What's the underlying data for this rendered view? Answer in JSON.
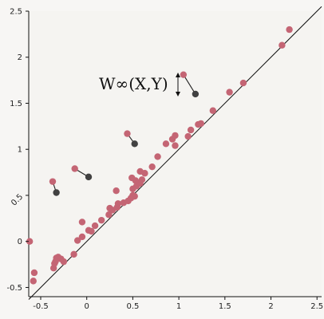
{
  "chart_data": {
    "type": "scatter",
    "title": "",
    "xlabel": "",
    "ylabel": "",
    "xlim": [
      -0.63,
      2.55
    ],
    "ylim": [
      -0.6,
      2.5
    ],
    "grid": false,
    "xticks": [
      -0.5,
      0,
      0.5,
      1,
      1.5,
      2,
      2.5
    ],
    "xtick_labels": [
      "-0.5",
      "0",
      "0.5",
      "1",
      "1.5",
      "2",
      "2.5"
    ],
    "yticks": [
      -0.5,
      0,
      0.5,
      1,
      1.5,
      2,
      2.5
    ],
    "ytick_labels": [
      "-0.5",
      "0",
      "0.5",
      "1",
      "1.5",
      "2",
      "2.5"
    ],
    "diagonal": {
      "from": [
        -0.63,
        -0.63
      ],
      "to": [
        2.55,
        2.55
      ]
    },
    "annotation": {
      "text": "W∞(X,Y)"
    },
    "colors": {
      "diagram_a": "#c46574",
      "diagram_b": "#414141",
      "line": "#111111"
    },
    "series": [
      {
        "points": [
          [
            -0.62,
            0.0
          ],
          [
            -0.57,
            -0.34
          ],
          [
            -0.58,
            -0.43
          ],
          [
            -0.36,
            -0.29
          ],
          [
            -0.35,
            -0.24
          ],
          [
            -0.33,
            -0.18
          ],
          [
            -0.31,
            -0.17
          ],
          [
            -0.28,
            -0.19
          ],
          [
            -0.34,
            -0.22
          ],
          [
            -0.25,
            -0.22
          ],
          [
            -0.14,
            -0.14
          ],
          [
            -0.1,
            0.01
          ],
          [
            -0.05,
            0.05
          ],
          [
            -0.05,
            0.21
          ],
          [
            0.02,
            0.12
          ],
          [
            0.05,
            0.11
          ],
          [
            0.09,
            0.17
          ],
          [
            0.16,
            0.23
          ],
          [
            0.24,
            0.29
          ],
          [
            0.28,
            0.34
          ],
          [
            0.25,
            0.36
          ],
          [
            0.33,
            0.37
          ],
          [
            0.34,
            0.41
          ],
          [
            0.32,
            0.55
          ],
          [
            0.4,
            0.42
          ],
          [
            0.45,
            0.44
          ],
          [
            0.48,
            0.47
          ],
          [
            0.5,
            0.5
          ],
          [
            0.52,
            0.49
          ],
          [
            0.5,
            0.57
          ],
          [
            0.54,
            0.6
          ],
          [
            0.58,
            0.63
          ],
          [
            0.6,
            0.67
          ],
          [
            0.53,
            0.66
          ],
          [
            0.49,
            0.69
          ],
          [
            0.58,
            0.76
          ],
          [
            0.63,
            0.74
          ],
          [
            0.71,
            0.81
          ],
          [
            0.77,
            0.92
          ],
          [
            0.86,
            1.06
          ],
          [
            0.93,
            1.11
          ],
          [
            0.96,
            1.15
          ],
          [
            0.96,
            1.04
          ],
          [
            1.1,
            1.14
          ],
          [
            1.13,
            1.21
          ],
          [
            1.21,
            1.27
          ],
          [
            1.24,
            1.28
          ],
          [
            1.37,
            1.42
          ],
          [
            1.55,
            1.62
          ],
          [
            1.7,
            1.72
          ],
          [
            2.12,
            2.13
          ],
          [
            2.2,
            2.3
          ]
        ]
      },
      {
        "points": []
      }
    ],
    "matched_pairs": [
      {
        "a": [
          -0.37,
          0.65
        ],
        "b": [
          -0.33,
          0.53
        ]
      },
      {
        "a": [
          -0.13,
          0.79
        ],
        "b": [
          0.02,
          0.7
        ]
      },
      {
        "a": [
          0.44,
          1.17
        ],
        "b": [
          0.52,
          1.06
        ]
      },
      {
        "a": [
          1.05,
          1.81
        ],
        "b": [
          1.18,
          1.6
        ]
      }
    ]
  }
}
